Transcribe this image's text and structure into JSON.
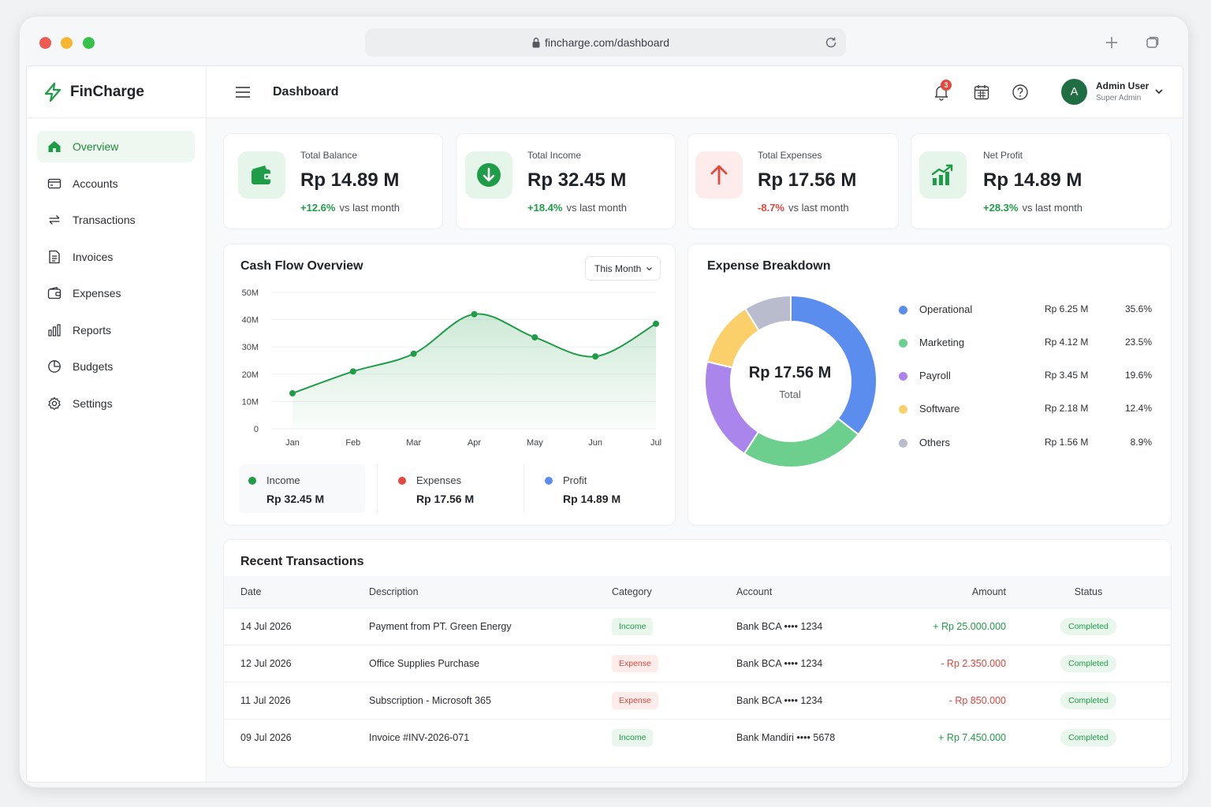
{
  "browser": {
    "url": "fincharge.com/dashboard"
  },
  "brand": {
    "name": "FinCharge"
  },
  "header": {
    "title": "Dashboard",
    "notification_count": "3",
    "user": {
      "initial": "A",
      "name": "Admin User",
      "role": "Super Admin"
    }
  },
  "sidebar": {
    "items": [
      {
        "label": "Overview",
        "icon": "home-icon",
        "active": true
      },
      {
        "label": "Accounts",
        "icon": "card-icon"
      },
      {
        "label": "Transactions",
        "icon": "swap-icon"
      },
      {
        "label": "Invoices",
        "icon": "invoice-icon"
      },
      {
        "label": "Expenses",
        "icon": "wallet-icon"
      },
      {
        "label": "Reports",
        "icon": "bar-chart-icon"
      },
      {
        "label": "Budgets",
        "icon": "pie-chart-icon"
      },
      {
        "label": "Settings",
        "icon": "gear-icon"
      }
    ]
  },
  "kpis": [
    {
      "label": "Total Balance",
      "value": "Rp 14.89 M",
      "delta": "+12.6%",
      "delta_suffix": "vs last month",
      "trend": "up",
      "icon": "wallet-icon"
    },
    {
      "label": "Total Income",
      "value": "Rp 32.45 M",
      "delta": "+18.4%",
      "delta_suffix": "vs last month",
      "trend": "up",
      "icon": "arrow-down-circle-icon"
    },
    {
      "label": "Total Expenses",
      "value": "Rp 17.56 M",
      "delta": "-8.7%",
      "delta_suffix": "vs last month",
      "trend": "down",
      "icon": "arrow-up-icon"
    },
    {
      "label": "Net Profit",
      "value": "Rp 14.89 M",
      "delta": "+28.3%",
      "delta_suffix": "vs last month",
      "trend": "up",
      "icon": "growth-chart-icon"
    }
  ],
  "cashflow": {
    "title": "Cash Flow Overview",
    "period": "This Month",
    "legend": [
      {
        "name": "Income",
        "value": "Rp 32.45 M",
        "color": "#1f9c47"
      },
      {
        "name": "Expenses",
        "value": "Rp 17.56 M",
        "color": "#e5483f"
      },
      {
        "name": "Profit",
        "value": "Rp 14.89 M",
        "color": "#5b8def"
      }
    ]
  },
  "chart_data": {
    "type": "area",
    "categories": [
      "Jan",
      "Feb",
      "Mar",
      "Apr",
      "May",
      "Jun",
      "Jul"
    ],
    "series": [
      {
        "values": [
          13,
          21,
          27.5,
          42,
          33.5,
          26.5,
          38.5
        ],
        "color": "#1f9c47"
      }
    ],
    "ylim": [
      0,
      50
    ],
    "yticks": [
      0,
      10,
      20,
      30,
      40,
      50
    ],
    "ytick_labels": [
      "0",
      "10M",
      "20M",
      "30M",
      "40M",
      "50M"
    ],
    "grid": true
  },
  "expense_breakdown": {
    "title": "Expense Breakdown",
    "total": "Rp 17.56 M",
    "total_label": "Total",
    "items": [
      {
        "name": "Operational",
        "amount": "Rp 6.25 M",
        "pct": "35.6%",
        "value": 35.6,
        "color": "#5b8def"
      },
      {
        "name": "Marketing",
        "amount": "Rp 4.12 M",
        "pct": "23.5%",
        "value": 23.5,
        "color": "#6dcf8e"
      },
      {
        "name": "Payroll",
        "amount": "Rp 3.45 M",
        "pct": "19.6%",
        "value": 19.6,
        "color": "#a985ec"
      },
      {
        "name": "Software",
        "amount": "Rp 2.18 M",
        "pct": "12.4%",
        "value": 12.4,
        "color": "#fbd06b"
      },
      {
        "name": "Others",
        "amount": "Rp 1.56 M",
        "pct": "8.9%",
        "value": 8.9,
        "color": "#b9bccd"
      }
    ]
  },
  "transactions": {
    "title": "Recent Transactions",
    "headers": [
      "Date",
      "Description",
      "Category",
      "Account",
      "Amount",
      "Status"
    ],
    "rows": [
      {
        "date": "14 Jul 2026",
        "description": "Payment from PT. Green Energy",
        "category": "Income",
        "account": "Bank BCA •••• 1234",
        "amount": "+ Rp 25.000.000",
        "status": "Completed"
      },
      {
        "date": "12 Jul 2026",
        "description": "Office Supplies Purchase",
        "category": "Expense",
        "account": "Bank BCA •••• 1234",
        "amount": "- Rp 2.350.000",
        "status": "Completed"
      },
      {
        "date": "11 Jul 2026",
        "description": "Subscription - Microsoft 365",
        "category": "Expense",
        "account": "Bank BCA •••• 1234",
        "amount": "- Rp 850.000",
        "status": "Completed"
      },
      {
        "date": "09 Jul 2026",
        "description": "Invoice #INV-2026-071",
        "category": "Income",
        "account": "Bank Mandiri •••• 5678",
        "amount": "+ Rp 7.450.000",
        "status": "Completed"
      }
    ]
  }
}
